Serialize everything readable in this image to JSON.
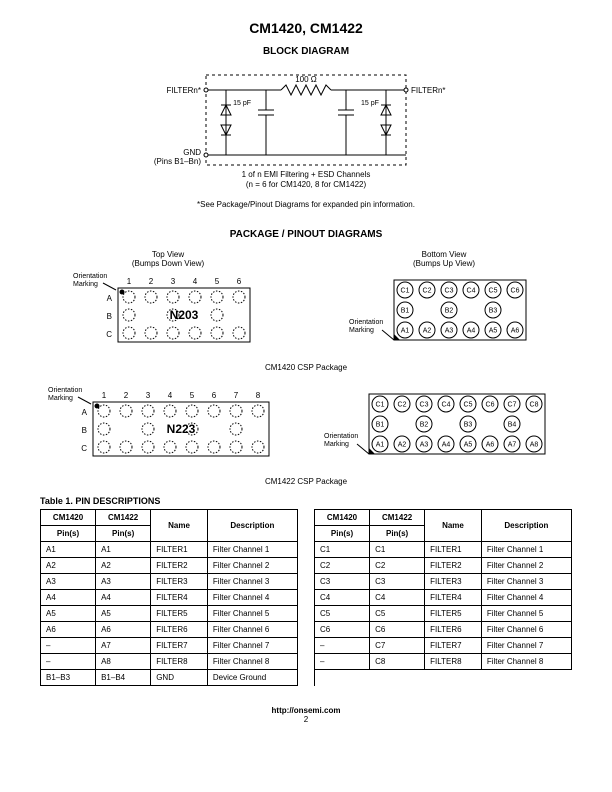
{
  "header": {
    "title": "CM1420, CM1422"
  },
  "block_diagram": {
    "title": "BLOCK DIAGRAM",
    "left_label": "FILTERn*",
    "right_label": "FILTERn*",
    "gnd_label": "GND",
    "gnd_pins": "(Pins B1–Bn)",
    "resistor": "100 Ω",
    "caps": [
      "15 pF",
      "15 pF"
    ],
    "caption1": "1 of n EMI Filtering + ESD Channels",
    "caption2": "(n = 6 for CM1420, 8 for CM1422)",
    "note": "*See Package/Pinout Diagrams for expanded pin information."
  },
  "package_section": {
    "title": "PACKAGE / PINOUT DIAGRAMS",
    "top_view_label": "Top View",
    "top_view_sub": "(Bumps Down View)",
    "bottom_view_label": "Bottom View",
    "bottom_view_sub": "(Bumps Up View)",
    "orientation_label": "Orientation\nMarking",
    "pkg1": {
      "cols": [
        "1",
        "2",
        "3",
        "4",
        "5",
        "6"
      ],
      "rows": [
        "A",
        "B",
        "C"
      ],
      "part": "N203",
      "caption": "CM1420 CSP Package",
      "bottom_cols": 6,
      "bottom_labels": {
        "C": [
          "C1",
          "C2",
          "C3",
          "C4",
          "C5",
          "C6"
        ],
        "B": [
          "B1",
          "",
          "B2",
          "",
          "B3",
          ""
        ],
        "A": [
          "A1",
          "A2",
          "A3",
          "A4",
          "A5",
          "A6"
        ]
      }
    },
    "pkg2": {
      "cols": [
        "1",
        "2",
        "3",
        "4",
        "5",
        "6",
        "7",
        "8"
      ],
      "rows": [
        "A",
        "B",
        "C"
      ],
      "part": "N223",
      "caption": "CM1422 CSP Package",
      "bottom_cols": 8,
      "bottom_labels": {
        "C": [
          "C1",
          "C2",
          "C3",
          "C4",
          "C5",
          "C6",
          "C7",
          "C8"
        ],
        "B": [
          "B1",
          "",
          "B2",
          "",
          "B3",
          "",
          "B4",
          ""
        ],
        "A": [
          "A1",
          "A2",
          "A3",
          "A4",
          "A5",
          "A6",
          "A7",
          "A8"
        ]
      }
    }
  },
  "table": {
    "title": "Table 1. PIN DESCRIPTIONS",
    "groups": [
      "CM1420",
      "CM1422"
    ],
    "cols": [
      "Pin(s)",
      "Pin(s)",
      "Name",
      "Description"
    ],
    "rows_left": [
      [
        "A1",
        "A1",
        "FILTER1",
        "Filter Channel 1"
      ],
      [
        "A2",
        "A2",
        "FILTER2",
        "Filter Channel 2"
      ],
      [
        "A3",
        "A3",
        "FILTER3",
        "Filter Channel 3"
      ],
      [
        "A4",
        "A4",
        "FILTER4",
        "Filter Channel 4"
      ],
      [
        "A5",
        "A5",
        "FILTER5",
        "Filter Channel 5"
      ],
      [
        "A6",
        "A6",
        "FILTER6",
        "Filter Channel 6"
      ],
      [
        "–",
        "A7",
        "FILTER7",
        "Filter Channel 7"
      ],
      [
        "–",
        "A8",
        "FILTER8",
        "Filter Channel 8"
      ],
      [
        "B1–B3",
        "B1–B4",
        "GND",
        "Device Ground"
      ]
    ],
    "rows_right": [
      [
        "C1",
        "C1",
        "FILTER1",
        "Filter Channel 1"
      ],
      [
        "C2",
        "C2",
        "FILTER2",
        "Filter Channel 2"
      ],
      [
        "C3",
        "C3",
        "FILTER3",
        "Filter Channel 3"
      ],
      [
        "C4",
        "C4",
        "FILTER4",
        "Filter Channel 4"
      ],
      [
        "C5",
        "C5",
        "FILTER5",
        "Filter Channel 5"
      ],
      [
        "C6",
        "C6",
        "FILTER6",
        "Filter Channel 6"
      ],
      [
        "–",
        "C7",
        "FILTER7",
        "Filter Channel 7"
      ],
      [
        "–",
        "C8",
        "FILTER8",
        "Filter Channel 8"
      ]
    ]
  },
  "footer": {
    "url": "http://onsemi.com",
    "page": "2"
  }
}
